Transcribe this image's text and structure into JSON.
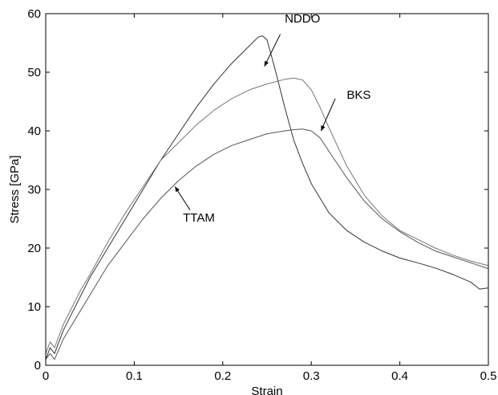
{
  "chart_data": {
    "type": "line",
    "title": "",
    "xlabel": "Strain",
    "ylabel": "Stress [GPa]",
    "xlim": [
      0,
      0.5
    ],
    "ylim": [
      0,
      60
    ],
    "xticks": [
      "0",
      "0.1",
      "0.2",
      "0.3",
      "0.4",
      "0.5"
    ],
    "yticks": [
      "0",
      "10",
      "20",
      "30",
      "40",
      "50",
      "60"
    ],
    "grid": false,
    "legend": "none",
    "series": [
      {
        "name": "NDDO",
        "color": "#333333",
        "x": [
          0,
          0.005,
          0.01,
          0.02,
          0.03,
          0.04,
          0.05,
          0.07,
          0.09,
          0.11,
          0.13,
          0.15,
          0.17,
          0.19,
          0.21,
          0.23,
          0.24,
          0.245,
          0.25,
          0.26,
          0.27,
          0.28,
          0.29,
          0.3,
          0.32,
          0.34,
          0.36,
          0.38,
          0.4,
          0.42,
          0.44,
          0.46,
          0.48,
          0.49,
          0.5
        ],
        "y": [
          1,
          3,
          2,
          6,
          9,
          12,
          15,
          20,
          25,
          30,
          35,
          39.5,
          44,
          48,
          51.5,
          54.5,
          56,
          56.2,
          55.5,
          50,
          44,
          38.5,
          34.5,
          31,
          26,
          23,
          21,
          19.5,
          18.3,
          17.5,
          16.6,
          15.5,
          14.2,
          13,
          13.2
        ]
      },
      {
        "name": "BKS",
        "color": "#777777",
        "x": [
          0,
          0.005,
          0.01,
          0.02,
          0.03,
          0.04,
          0.05,
          0.07,
          0.09,
          0.11,
          0.13,
          0.15,
          0.17,
          0.19,
          0.21,
          0.23,
          0.25,
          0.27,
          0.28,
          0.29,
          0.3,
          0.31,
          0.32,
          0.34,
          0.36,
          0.38,
          0.4,
          0.42,
          0.44,
          0.46,
          0.48,
          0.5
        ],
        "y": [
          2,
          4,
          3,
          7,
          10,
          13,
          15.5,
          21,
          26,
          30.5,
          35,
          38,
          41,
          43.5,
          45.5,
          47,
          48,
          48.8,
          49,
          48.7,
          47,
          44,
          40.5,
          34,
          29,
          25.5,
          23,
          21.5,
          20,
          18.8,
          17.8,
          17
        ]
      },
      {
        "name": "TTAM",
        "color": "#555555",
        "x": [
          0,
          0.005,
          0.01,
          0.02,
          0.03,
          0.05,
          0.07,
          0.09,
          0.11,
          0.13,
          0.15,
          0.17,
          0.19,
          0.21,
          0.23,
          0.25,
          0.27,
          0.28,
          0.29,
          0.3,
          0.31,
          0.32,
          0.34,
          0.36,
          0.38,
          0.4,
          0.42,
          0.44,
          0.46,
          0.48,
          0.5
        ],
        "y": [
          1,
          2,
          1,
          4.5,
          7,
          12,
          17,
          21,
          25,
          28.5,
          31.5,
          34,
          36,
          37.5,
          38.5,
          39.5,
          40,
          40.2,
          40.3,
          40,
          38.8,
          36.5,
          32,
          28,
          25,
          22.8,
          21,
          19.5,
          18.5,
          17.5,
          16.5
        ]
      }
    ],
    "annotations": [
      {
        "text": "NDDO",
        "label_x": 0.27,
        "label_y": 58.5,
        "arrow_from": [
          0.265,
          56.5
        ],
        "arrow_to": [
          0.247,
          51
        ]
      },
      {
        "text": "BKS",
        "label_x": 0.34,
        "label_y": 45.5,
        "arrow_from": [
          0.327,
          45.5
        ],
        "arrow_to": [
          0.311,
          40
        ]
      },
      {
        "text": "TTAM",
        "label_x": 0.155,
        "label_y": 24.5,
        "arrow_from": [
          0.163,
          26.5
        ],
        "arrow_to": [
          0.146,
          30.5
        ]
      }
    ]
  }
}
